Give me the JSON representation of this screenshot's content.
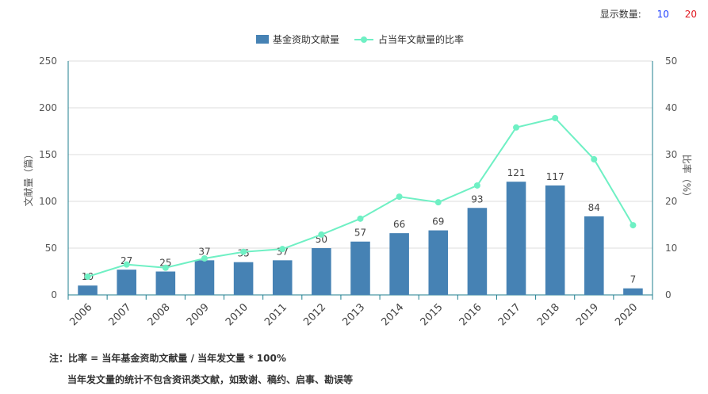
{
  "controls": {
    "label": "显示数量:",
    "options": [
      "10",
      "20"
    ]
  },
  "chart_data": {
    "type": "bar+line",
    "categories": [
      "2006",
      "2007",
      "2008",
      "2009",
      "2010",
      "2011",
      "2012",
      "2013",
      "2014",
      "2015",
      "2016",
      "2017",
      "2018",
      "2019",
      "2020"
    ],
    "series": [
      {
        "name": "基金资助文献量",
        "type": "bar",
        "axis": "left",
        "color": "#4682b4",
        "values": [
          10,
          27,
          25,
          37,
          35,
          37,
          50,
          57,
          66,
          69,
          93,
          121,
          117,
          84,
          7
        ]
      },
      {
        "name": "占当年文献量的比率",
        "type": "line",
        "axis": "right",
        "color": "#6ff0c4",
        "values": [
          3.9,
          6.5,
          5.8,
          7.8,
          9.2,
          9.8,
          12.9,
          16.3,
          21.0,
          19.8,
          23.4,
          35.8,
          37.8,
          29.0,
          14.9
        ]
      }
    ],
    "ylabel_left": "文献量（篇）",
    "ylabel_right": "比率（%）",
    "ylim_left": [
      0,
      250
    ],
    "ylim_right": [
      0,
      50
    ],
    "yticks_left": [
      "0",
      "50",
      "100",
      "150",
      "200",
      "250"
    ],
    "yticks_right": [
      "0",
      "10",
      "20",
      "30",
      "40",
      "50"
    ],
    "grid": true,
    "legend": "top-center"
  },
  "notes": {
    "line1": "注：比率 = 当年基金资助文献量 / 当年发文量 * 100%",
    "line2": "当年发文量的统计不包含资讯类文献，如致谢、稿约、启事、勘误等"
  }
}
